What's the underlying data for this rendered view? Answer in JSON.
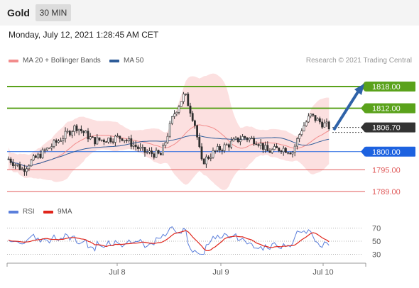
{
  "header": {
    "symbol": "Gold",
    "timeframe": "30 MIN"
  },
  "timestamp": "Monday, July 12, 2021 1:28:45 AM CET",
  "legend": [
    {
      "label": "MA 20 + Bollinger Bands",
      "color": "#f28c8c"
    },
    {
      "label": "MA 50",
      "color": "#2e5c99"
    }
  ],
  "credit": "Research © 2021 Trading Central",
  "rsi_legend": [
    {
      "label": "RSI",
      "color": "#5b7fdb"
    },
    {
      "label": "9MA",
      "color": "#e0251b"
    }
  ],
  "colors": {
    "resistance": "#5aa21b",
    "pivot": "#1d62e0",
    "support": "#e05a5a",
    "current": "#333333",
    "candle": "#2e2e2e",
    "band": "#fbd3d3",
    "arrow": "#2e62a8"
  },
  "chart_data": [
    {
      "type": "candlestick",
      "title": "Gold 30 MIN",
      "ylim": [
        1786,
        1822
      ],
      "x_ticks": [
        "Jul 8",
        "Jul 9",
        "Jul 10"
      ],
      "levels": [
        {
          "label": "1818.00",
          "value": 1818.0,
          "kind": "resistance"
        },
        {
          "label": "1812.00",
          "value": 1812.0,
          "kind": "resistance"
        },
        {
          "label": "1806.70",
          "value": 1806.7,
          "kind": "current"
        },
        {
          "label": "1800.00",
          "value": 1800.0,
          "kind": "pivot"
        },
        {
          "label": "1795.00",
          "value": 1795.0,
          "kind": "support"
        },
        {
          "label": "1789.00",
          "value": 1789.0,
          "kind": "support"
        }
      ],
      "projection": {
        "from": 1806.0,
        "to": 1818.0
      }
    },
    {
      "type": "line",
      "title": "RSI",
      "y_ticks": [
        "70",
        "50",
        "30"
      ],
      "ylim": [
        20,
        80
      ],
      "series": [
        {
          "name": "RSI"
        },
        {
          "name": "9MA"
        }
      ]
    }
  ]
}
